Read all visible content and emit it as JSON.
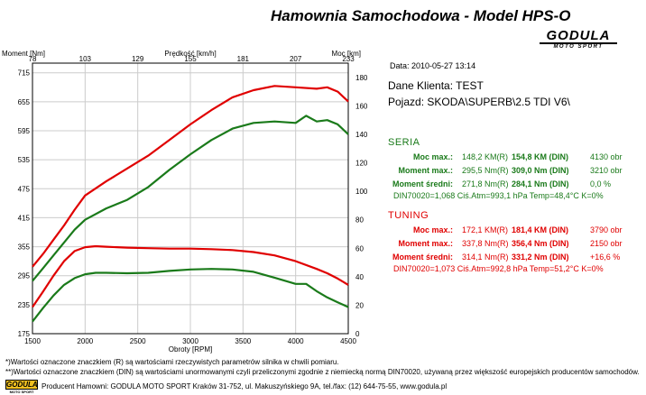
{
  "header": {
    "title": "Hamownia Samochodowa   -   Model HPS-O",
    "brand_logo": "GODULA",
    "brand_sub": "MOTO SPORT"
  },
  "info": {
    "date": "Data: 2010-05-27  13:14",
    "client": "Dane Klienta: TEST",
    "vehicle": "Pojazd: SKODA\\SUPERB\\2.5 TDI V6\\"
  },
  "seria": {
    "heading": "SERIA",
    "rows": [
      {
        "label": "Moc max.:",
        "r": "148,2 KM(R)",
        "din": "154,8 KM (DIN)",
        "extra": "4130 obr"
      },
      {
        "label": "Moment max.:",
        "r": "295,5 Nm(R)",
        "din": "309,0 Nm (DIN)",
        "extra": "3210 obr"
      },
      {
        "label": "Moment średni:",
        "r": "271,8 Nm(R)",
        "din": "284,1 Nm (DIN)",
        "extra": "0,0 %"
      }
    ],
    "conditions": "DIN70020=1,068   Ciś.Atm=993,1 hPa   Temp=48,4°C  K=0%"
  },
  "tuning": {
    "heading": "TUNING",
    "rows": [
      {
        "label": "Moc max.:",
        "r": "172,1 KM(R)",
        "din": "181,4 KM (DIN)",
        "extra": "3790 obr"
      },
      {
        "label": "Moment max.:",
        "r": "337,8 Nm(R)",
        "din": "356,4 Nm (DIN)",
        "extra": "2150 obr"
      },
      {
        "label": "Moment średni:",
        "r": "314,1 Nm(R)",
        "din": "331,2 Nm (DIN)",
        "extra": "+16,6 %"
      }
    ],
    "conditions": "DIN70020=1,073   Ciś.Atm=992,8 hPa   Temp=51,2°C  K=0%"
  },
  "notes": {
    "n1": "*)Wartości oznaczone znaczkiem (R) są wartościami rzeczywistych parametrów silnika w chwili pomiaru.",
    "n2": "**)Wartości oznaczone znaczkiem (DIN) są wartościami unormowanymi czyli przeliczonymi zgodnie z niemiecką normą DIN70020, używaną przez większość europejskich producentów samochodów.",
    "producer": "Producent Hamowni: GODULA MOTO SPORT Kraków 31-752, ul. Makuszyńskiego 9A, tel./fax: (12) 644-75-55, www.godula.pl",
    "footer_logo": "GODULA",
    "footer_logo_sub": "MOTO SPORT"
  },
  "colors": {
    "seria": "#1a7a1a",
    "tuning": "#e00000",
    "grid": "#cccccc"
  },
  "chart_data": {
    "type": "line",
    "xlabel": "Obroty [RPM]",
    "top_axis_label": "Prędkość [km/h]",
    "left_axis_label": "Moment [Nm]",
    "right_axis_label": "Moc [km]",
    "xlim": [
      1500,
      4500
    ],
    "ylim_torque": [
      175,
      735
    ],
    "ylim_power": [
      0,
      190
    ],
    "x_ticks": [
      1500,
      2000,
      2500,
      3000,
      3500,
      4000,
      4500
    ],
    "left_ticks": [
      175,
      235,
      295,
      355,
      415,
      475,
      535,
      595,
      655,
      715
    ],
    "right_ticks": [
      0,
      20,
      40,
      60,
      80,
      100,
      120,
      140,
      160,
      180
    ],
    "top_ticks": [
      "78",
      "103",
      "129",
      "155",
      "181",
      "207",
      "233"
    ],
    "grid": true,
    "series": [
      {
        "name": "TUNING",
        "kind": "torque",
        "color": "#e00000",
        "x": [
          1500,
          1600,
          1700,
          1800,
          1900,
          2000,
          2100,
          2200,
          2400,
          2600,
          2800,
          3000,
          3200,
          3400,
          3600,
          3800,
          4000,
          4200,
          4300,
          4400,
          4500
        ],
        "y": [
          230,
          262,
          295,
          325,
          346,
          354,
          356,
          355,
          353,
          352,
          351,
          351,
          350,
          348,
          344,
          337,
          325,
          309,
          300,
          289,
          276
        ]
      },
      {
        "name": "SERIA",
        "kind": "torque",
        "color": "#1a7a1a",
        "x": [
          1500,
          1600,
          1700,
          1800,
          1900,
          2000,
          2100,
          2200,
          2400,
          2600,
          2800,
          3000,
          3200,
          3400,
          3600,
          3800,
          4000,
          4100,
          4200,
          4300,
          4400,
          4500
        ],
        "y": [
          200,
          228,
          254,
          276,
          290,
          298,
          301,
          301,
          300,
          301,
          305,
          308,
          309,
          308,
          303,
          291,
          278,
          278,
          263,
          250,
          240,
          230
        ]
      },
      {
        "name": "TUNING",
        "kind": "power",
        "color": "#e00000",
        "x": [
          1500,
          1600,
          1700,
          1800,
          1900,
          2000,
          2200,
          2400,
          2600,
          2800,
          3000,
          3200,
          3400,
          3600,
          3800,
          4000,
          4200,
          4300,
          4400,
          4500
        ],
        "y": [
          47,
          56,
          66,
          76,
          87,
          97,
          107,
          116,
          125,
          136,
          147,
          157,
          166,
          171,
          174,
          173,
          172,
          173,
          170,
          163
        ]
      },
      {
        "name": "SERIA",
        "kind": "power",
        "color": "#1a7a1a",
        "x": [
          1500,
          1600,
          1700,
          1800,
          1900,
          2000,
          2200,
          2400,
          2600,
          2800,
          3000,
          3200,
          3400,
          3600,
          3800,
          4000,
          4100,
          4200,
          4300,
          4400,
          4500
        ],
        "y": [
          37,
          46,
          55,
          64,
          73,
          80,
          88,
          94,
          103,
          115,
          126,
          136,
          144,
          148,
          149,
          148,
          153,
          149,
          150,
          147,
          140
        ]
      }
    ]
  }
}
